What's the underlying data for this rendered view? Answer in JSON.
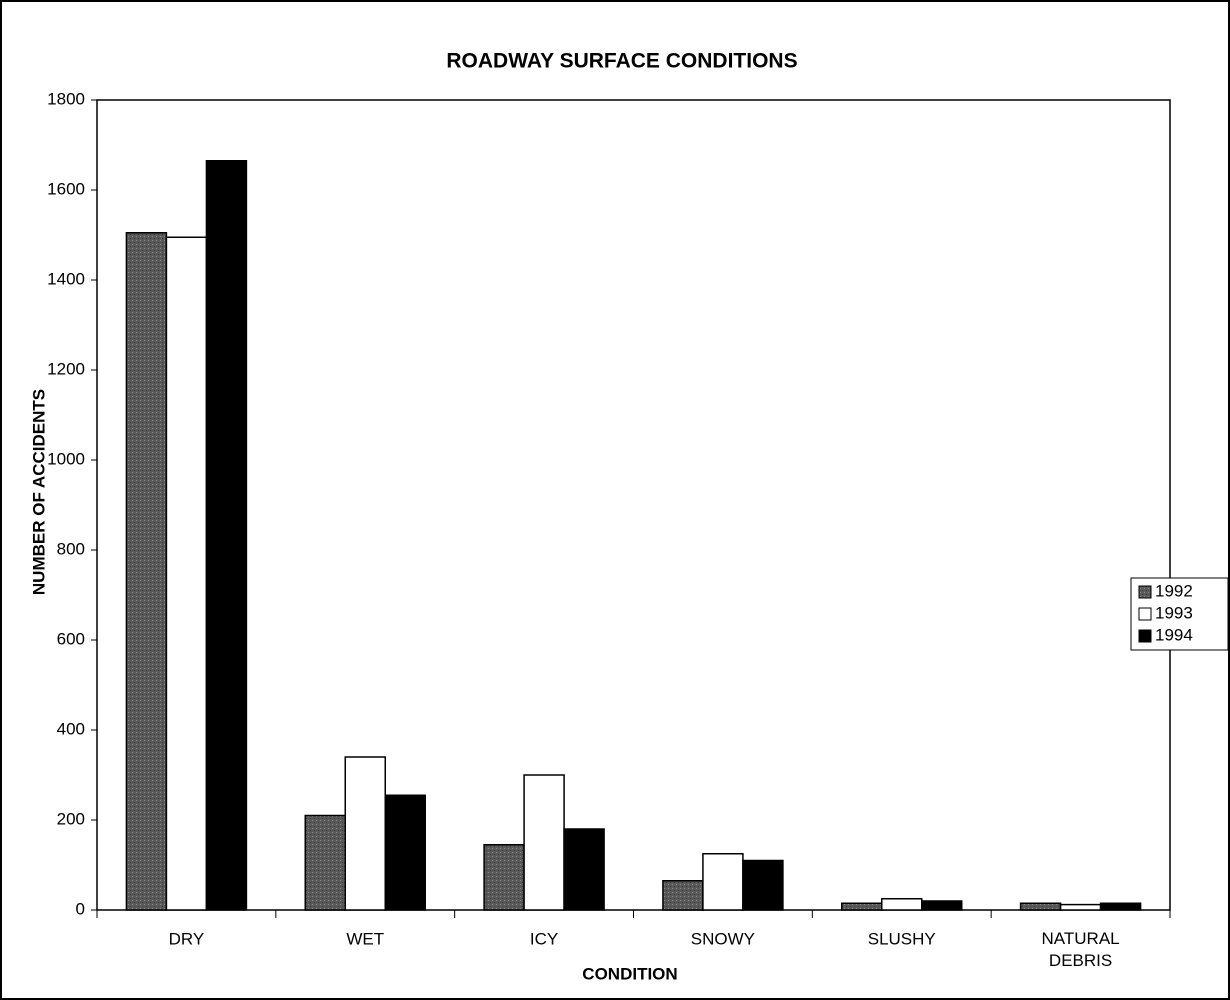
{
  "chart_data": {
    "type": "bar",
    "title": "ROADWAY SURFACE CONDITIONS",
    "x_label": "CONDITION",
    "y_label": "NUMBER OF ACCIDENTS",
    "categories": [
      "DRY",
      "WET",
      "ICY",
      "SNOWY",
      "SLUSHY",
      "NATURAL DEBRIS"
    ],
    "series": [
      {
        "name": "1992",
        "color": "#5a5a5a",
        "values": [
          1505,
          210,
          145,
          65,
          15,
          15
        ]
      },
      {
        "name": "1993",
        "color": "#ffffff",
        "values": [
          1495,
          340,
          300,
          125,
          25,
          12
        ]
      },
      {
        "name": "1994",
        "color": "#000000",
        "values": [
          1665,
          255,
          180,
          110,
          20,
          15
        ]
      }
    ],
    "ylim": [
      0,
      1800
    ],
    "yticks": [
      0,
      200,
      400,
      600,
      800,
      1000,
      1200,
      1400,
      1600,
      1800
    ],
    "grid": false,
    "legend": "right"
  }
}
